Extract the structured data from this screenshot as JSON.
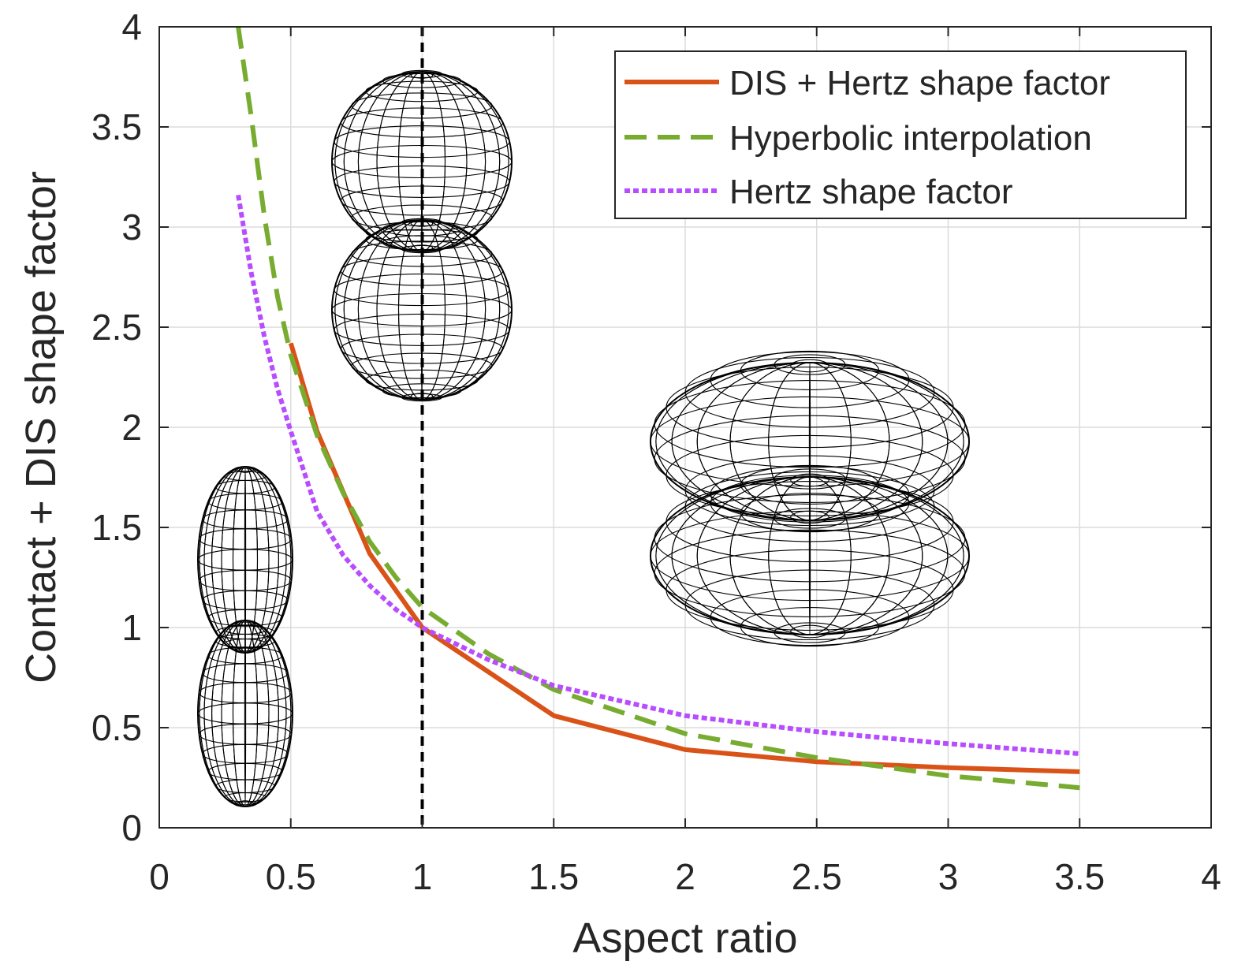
{
  "chart_data": {
    "type": "line",
    "xlabel": "Aspect ratio",
    "ylabel": "Contact + DIS shape factor",
    "xlim": [
      0,
      4
    ],
    "ylim": [
      0,
      4
    ],
    "xticks": [
      0,
      0.5,
      1,
      1.5,
      2,
      2.5,
      3,
      3.5,
      4
    ],
    "xtick_labels": [
      "0",
      "0.5",
      "1",
      "1.5",
      "2",
      "2.5",
      "3",
      "3.5",
      "4"
    ],
    "yticks": [
      0,
      0.5,
      1,
      1.5,
      2,
      2.5,
      3,
      3.5,
      4
    ],
    "ytick_labels": [
      "0",
      "0.5",
      "1",
      "1.5",
      "2",
      "2.5",
      "3",
      "3.5",
      "4"
    ],
    "grid": true,
    "legend_position": "top-right",
    "reference_line": {
      "x": 1,
      "style": "dotted",
      "color": "#000000"
    },
    "series": [
      {
        "name": "DIS + Hertz shape factor",
        "color": "#D95319",
        "style": "solid",
        "x": [
          0.5,
          0.6,
          0.8,
          1.0,
          1.5,
          2.0,
          2.5,
          3.0,
          3.5
        ],
        "y": [
          2.42,
          1.98,
          1.37,
          1.0,
          0.56,
          0.39,
          0.33,
          0.3,
          0.28
        ]
      },
      {
        "name": "Hyperbolic interpolation",
        "color": "#77AC30",
        "style": "dashed",
        "x": [
          0.3,
          0.35,
          0.4,
          0.45,
          0.5,
          0.6,
          0.7,
          0.8,
          0.9,
          1.0,
          1.25,
          1.5,
          2.0,
          2.5,
          3.0,
          3.5
        ],
        "y": [
          4.0,
          3.55,
          3.05,
          2.65,
          2.36,
          1.96,
          1.67,
          1.43,
          1.25,
          1.1,
          0.87,
          0.69,
          0.47,
          0.35,
          0.26,
          0.2
        ]
      },
      {
        "name": "Hertz shape factor",
        "color": "#B84DFF",
        "style": "dotted",
        "x": [
          0.3,
          0.35,
          0.4,
          0.45,
          0.5,
          0.6,
          0.7,
          0.8,
          0.9,
          1.0,
          1.25,
          1.5,
          2.0,
          2.5,
          3.0,
          3.5
        ],
        "y": [
          3.16,
          2.77,
          2.45,
          2.19,
          1.98,
          1.58,
          1.36,
          1.21,
          1.09,
          1.0,
          0.84,
          0.71,
          0.56,
          0.48,
          0.42,
          0.37
        ]
      }
    ]
  },
  "insets": [
    {
      "name": "prolate-ellipsoid-pair",
      "shape": "prolate",
      "aspect_ratio": 0.5
    },
    {
      "name": "sphere-pair",
      "shape": "sphere",
      "aspect_ratio": 1.0
    },
    {
      "name": "oblate-ellipsoid-pair",
      "shape": "oblate",
      "aspect_ratio": 2.0
    }
  ]
}
